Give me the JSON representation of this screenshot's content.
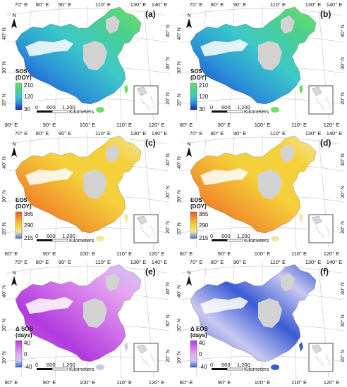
{
  "common": {
    "top_lon_ticks": [
      "70° E",
      "80° E",
      "90° E",
      "110° E",
      "130° E",
      "140° E"
    ],
    "bottom_lon_ticks": [
      "80° E",
      "90° E",
      "100° E",
      "110° E",
      "120° E"
    ],
    "left_lat_ticks": [
      "40° N",
      "30° N",
      "20° N"
    ],
    "right_lat_ticks": [
      "40° N",
      "30° N",
      "20° N"
    ],
    "north_label": "N",
    "scale_ticks": [
      "0",
      "600",
      "1,200"
    ],
    "scale_unit": "Kilometers"
  },
  "panels": [
    {
      "id": "a",
      "label": "(a)",
      "legend_title_1": "SOS",
      "legend_title_2": "(DOY)",
      "legend_max": "210",
      "legend_mid": "120",
      "legend_min": "30",
      "colors": [
        "#1f1fbf",
        "#2a8fd8",
        "#3cc8c8",
        "#4cd08a",
        "#6ee06a"
      ]
    },
    {
      "id": "b",
      "label": "(b)",
      "legend_title_1": "SOS",
      "legend_title_2": "(DOY)",
      "legend_max": "210",
      "legend_mid": "120",
      "legend_min": "30",
      "colors": [
        "#1f1fbf",
        "#2a8fd8",
        "#3cc8c8",
        "#4cd08a",
        "#6ee06a"
      ]
    },
    {
      "id": "c",
      "label": "(c)",
      "legend_title_1": "EOS",
      "legend_title_2": "(DOY)",
      "legend_max": "365",
      "legend_mid": "290",
      "legend_min": "215",
      "colors": [
        "#4a6fd8",
        "#f2e6a0",
        "#f4d13a",
        "#f29a2e",
        "#e8561f"
      ]
    },
    {
      "id": "d",
      "label": "(d)",
      "legend_title_1": "EOS",
      "legend_title_2": "(DOY)",
      "legend_max": "365",
      "legend_mid": "290",
      "legend_min": "215",
      "colors": [
        "#4a6fd8",
        "#f2e6a0",
        "#f4d13a",
        "#f29a2e",
        "#e8561f"
      ]
    },
    {
      "id": "e",
      "label": "(e)",
      "legend_title_1": "Δ SOS",
      "legend_title_2": "(days)",
      "legend_max": "40",
      "legend_mid": "0",
      "legend_min": "-40",
      "colors": [
        "#3b5bd6",
        "#c8c8f0",
        "#e6a8f0",
        "#d070e8",
        "#b23adf"
      ]
    },
    {
      "id": "f",
      "label": "(f)",
      "legend_title_1": "Δ EOS",
      "legend_title_2": "(days)",
      "legend_max": "40",
      "legend_mid": "0",
      "legend_min": "-40",
      "colors": [
        "#3b5bd6",
        "#c8c8f0",
        "#e6a8f0",
        "#d070e8",
        "#b23adf"
      ]
    }
  ]
}
